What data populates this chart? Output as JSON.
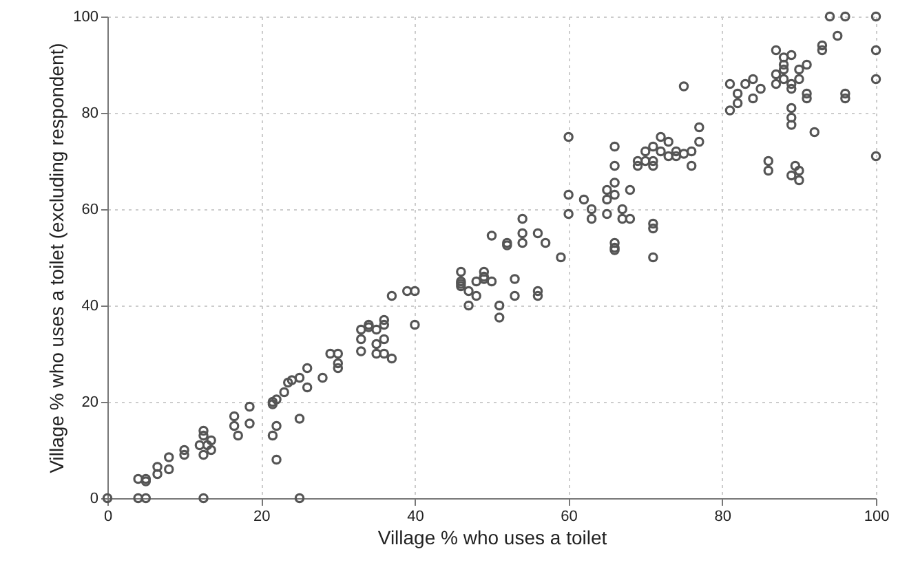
{
  "chart_data": {
    "type": "scatter",
    "xlabel": "Village % who uses a toilet",
    "ylabel": "Village % who uses a toilet (excluding respondent)",
    "xlim": [
      0,
      100
    ],
    "ylim": [
      0,
      100
    ],
    "xticks": [
      0,
      20,
      40,
      60,
      80,
      100
    ],
    "yticks": [
      0,
      20,
      40,
      60,
      80,
      100
    ],
    "grid": true,
    "marker": "circle",
    "series": [
      {
        "color": "#555555",
        "x": [
          0,
          4,
          5,
          12.5,
          25,
          4,
          5,
          5,
          6.5,
          6.5,
          8,
          8,
          10,
          10,
          12,
          12.5,
          12.5,
          12.5,
          13,
          13.5,
          13.5,
          16.5,
          16.5,
          17,
          18.5,
          18.5,
          21.5,
          21.5,
          22,
          21.5,
          22,
          22,
          23,
          23.5,
          24,
          25,
          25,
          26,
          26,
          28,
          29,
          30,
          30,
          30,
          33,
          33,
          33,
          34,
          34,
          35,
          35,
          35,
          36,
          36,
          36,
          36,
          37,
          37,
          39,
          40,
          40,
          46,
          46,
          46,
          46,
          47,
          47,
          48,
          48,
          49,
          49,
          49,
          50,
          50,
          51,
          51,
          52,
          52,
          53,
          53,
          54,
          54,
          54,
          56,
          56,
          56,
          57,
          59,
          60,
          60,
          60,
          62,
          63,
          63,
          65,
          65,
          65,
          66,
          66,
          66,
          66,
          66,
          66,
          66,
          67,
          67,
          68,
          68,
          69,
          69,
          70,
          70,
          71,
          71,
          71,
          71,
          71,
          71,
          72,
          72,
          73,
          73,
          74,
          74,
          75,
          75,
          76,
          76,
          77,
          77,
          81,
          81,
          82,
          82,
          83,
          84,
          84,
          85,
          86,
          86,
          87,
          87,
          88,
          88,
          88,
          88,
          87,
          89,
          89,
          89,
          89,
          89,
          89,
          90,
          90,
          91,
          91,
          91,
          90,
          90,
          89.5,
          89,
          92,
          93,
          93,
          94,
          95,
          96,
          100,
          100,
          100,
          100,
          96,
          96
        ],
        "values": [
          0,
          0,
          0,
          0,
          0,
          4,
          4,
          3.5,
          6.5,
          5,
          8.5,
          6,
          9,
          10,
          11,
          13,
          14,
          9,
          11,
          10,
          12,
          15,
          17,
          13,
          19,
          15.5,
          20,
          19.5,
          20.5,
          13,
          15,
          8,
          22,
          24,
          24.5,
          25,
          16.5,
          27,
          23,
          25,
          30,
          30,
          28,
          27,
          33,
          35,
          30.5,
          35.5,
          36,
          35,
          32,
          30,
          36,
          37,
          33,
          30,
          29,
          42,
          43,
          43,
          36,
          47,
          45,
          44,
          44.5,
          43,
          40,
          42,
          45,
          46,
          47,
          45.5,
          45,
          54.5,
          40,
          37.5,
          52.5,
          53,
          45.5,
          42,
          55,
          58,
          53,
          43,
          42,
          55,
          53,
          50,
          75,
          63,
          59,
          62,
          60,
          58,
          59,
          62,
          64,
          63,
          65.5,
          69,
          73,
          53,
          52,
          51.5,
          60,
          58,
          58,
          64,
          70,
          69,
          70,
          72,
          73,
          70,
          69,
          57,
          56,
          50,
          75,
          72,
          71,
          74,
          71,
          72,
          71.5,
          85.5,
          69,
          72,
          77,
          74,
          80.5,
          86,
          84,
          82,
          86,
          87,
          83,
          85,
          70,
          68,
          86,
          88,
          91.5,
          90,
          87,
          89,
          93,
          92,
          85,
          86,
          81,
          79,
          77.5,
          89,
          87,
          90,
          84,
          83,
          68,
          66,
          69,
          67,
          76,
          94,
          93,
          100,
          96,
          100,
          100,
          93,
          87,
          71,
          83,
          84
        ]
      }
    ]
  }
}
